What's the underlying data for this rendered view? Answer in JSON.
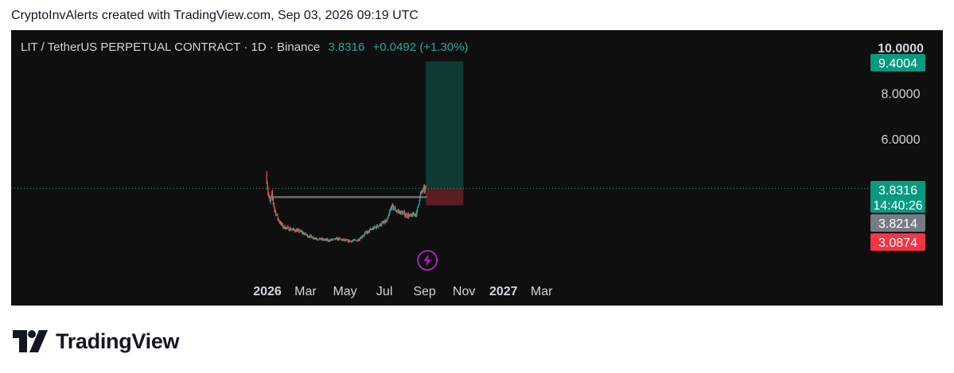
{
  "attribution": "CryptoInvAlerts created with TradingView.com, Sep 03, 2026 09:19 UTC",
  "symbol": {
    "title": "LIT / TetherUS PERPETUAL CONTRACT · 1D · Binance",
    "price": "3.8316",
    "change": "+0.0492 (+1.30%)"
  },
  "brand": {
    "name": "TradingView"
  },
  "colors": {
    "background": "#0f0f0f",
    "up": "#26a69a",
    "down": "#ef5350",
    "axis_text": "#d1d4dc",
    "target_zone": "#0f3a33",
    "stop_zone": "#5a1d22",
    "current_label": "#089981",
    "entry_label": "#787b86",
    "stop_label": "#f23645",
    "event_icon": "#9c27b0"
  },
  "chart_data": {
    "type": "candlestick",
    "x_ticks": [
      {
        "date": "2026-01-01",
        "label": "2026"
      },
      {
        "date": "2026-03-01",
        "label": "Mar"
      },
      {
        "date": "2026-05-01",
        "label": "May"
      },
      {
        "date": "2026-07-01",
        "label": "Jul"
      },
      {
        "date": "2026-09-01",
        "label": "Sep"
      },
      {
        "date": "2026-11-01",
        "label": "Nov"
      },
      {
        "date": "2027-01-01",
        "label": "2027"
      },
      {
        "date": "2027-03-01",
        "label": "Mar"
      }
    ],
    "y_ticks": [
      "10.0000",
      "8.0000",
      "6.0000"
    ],
    "y_range": [
      0.7,
      10.0
    ],
    "series_path": [
      {
        "date": "2025-12-31",
        "price": 4.2
      },
      {
        "date": "2026-01-02",
        "price": 3.65
      },
      {
        "date": "2026-01-05",
        "price": 3.2
      },
      {
        "date": "2026-01-08",
        "price": 3.55
      },
      {
        "date": "2026-01-12",
        "price": 2.9
      },
      {
        "date": "2026-01-18",
        "price": 2.45
      },
      {
        "date": "2026-01-25",
        "price": 2.15
      },
      {
        "date": "2026-02-05",
        "price": 2.05
      },
      {
        "date": "2026-02-20",
        "price": 1.95
      },
      {
        "date": "2026-03-05",
        "price": 1.75
      },
      {
        "date": "2026-03-20",
        "price": 1.62
      },
      {
        "date": "2026-04-05",
        "price": 1.55
      },
      {
        "date": "2026-04-20",
        "price": 1.62
      },
      {
        "date": "2026-05-05",
        "price": 1.52
      },
      {
        "date": "2026-05-20",
        "price": 1.55
      },
      {
        "date": "2026-06-01",
        "price": 1.85
      },
      {
        "date": "2026-06-15",
        "price": 2.1
      },
      {
        "date": "2026-06-25",
        "price": 2.25
      },
      {
        "date": "2026-07-05",
        "price": 2.4
      },
      {
        "date": "2026-07-12",
        "price": 3.05
      },
      {
        "date": "2026-07-20",
        "price": 2.85
      },
      {
        "date": "2026-08-01",
        "price": 2.7
      },
      {
        "date": "2026-08-10",
        "price": 2.6
      },
      {
        "date": "2026-08-20",
        "price": 2.75
      },
      {
        "date": "2026-08-24",
        "price": 3.4
      },
      {
        "date": "2026-08-28",
        "price": 3.7
      },
      {
        "date": "2026-09-03",
        "price": 3.83
      }
    ],
    "levels": {
      "target": {
        "value": 9.4004,
        "label": "9.4004"
      },
      "current": {
        "value": 3.8316,
        "label": "3.8316",
        "countdown": "14:40:26"
      },
      "entry": {
        "value": 3.8214,
        "label": "3.8214"
      },
      "stop": {
        "value": 3.0874,
        "label": "3.0874"
      }
    },
    "resistance_line": {
      "value": 3.45,
      "start": "2026-01-08",
      "end": "2026-09-05"
    },
    "position_tool": {
      "start": "2026-09-03",
      "end": "2026-10-31"
    },
    "event_marker": {
      "date": "2026-09-03"
    }
  }
}
